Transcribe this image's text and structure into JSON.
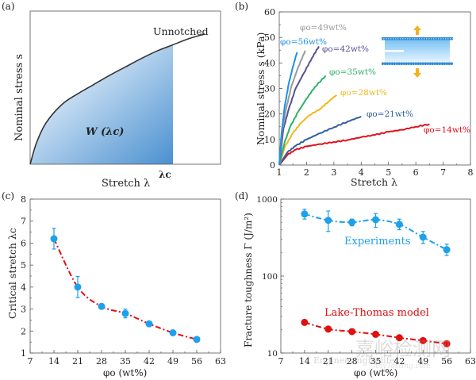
{
  "chart_data": [
    {
      "panel_label": "(a)",
      "type": "area",
      "title": "",
      "xlabel": "Stretch λ",
      "ylabel": "Nominal stress s",
      "curve_label": "Unnotched",
      "area_label": "W (λc)",
      "marker_label": "λc",
      "curve": {
        "x": [
          1,
          1.2,
          1.5,
          2,
          2.5,
          3,
          3.5,
          4,
          4.5,
          5,
          5.5,
          6,
          6.5
        ],
        "y": [
          0,
          0.14,
          0.27,
          0.39,
          0.46,
          0.52,
          0.58,
          0.635,
          0.69,
          0.74,
          0.78,
          0.82,
          0.85
        ]
      },
      "lambda_c": 5.5,
      "xlim": [
        1,
        7
      ],
      "ylim": [
        0,
        1
      ],
      "colors": {
        "curve": "#333333",
        "fill_light": "#e4eff9",
        "fill_dark": "#4a90d0"
      }
    },
    {
      "panel_label": "(b)",
      "type": "line",
      "xlabel": "Stretch λ",
      "ylabel": "Nominal stress s (kPa)",
      "xlim": [
        1,
        8
      ],
      "ylim": [
        0,
        60
      ],
      "xticks": [
        "1",
        "2",
        "3",
        "4",
        "5",
        "6",
        "7",
        "8"
      ],
      "yticks": [
        "0",
        "10",
        "20",
        "30",
        "40",
        "50",
        "60"
      ],
      "series": [
        {
          "name": "φo=14wt%",
          "color": "#e0101c",
          "x": [
            1,
            1.3,
            1.6,
            2,
            2.5,
            3,
            3.5,
            4,
            4.5,
            5,
            5.5,
            6,
            6.5
          ],
          "y": [
            0,
            4,
            6,
            7.3,
            8.2,
            9,
            9.8,
            10.9,
            11.8,
            13,
            13.8,
            15,
            16
          ]
        },
        {
          "name": "φo=21wt%",
          "color": "#2f5e9e",
          "x": [
            1,
            1.3,
            1.6,
            2,
            2.5,
            3,
            3.5,
            4
          ],
          "y": [
            0,
            5,
            7.5,
            10,
            12.5,
            14.8,
            17,
            19
          ]
        },
        {
          "name": "φo=28wt%",
          "color": "#f2b81e",
          "x": [
            1,
            1.2,
            1.5,
            1.8,
            2.1,
            2.5,
            2.8,
            3.1
          ],
          "y": [
            0,
            7,
            12.5,
            16.5,
            19.5,
            22,
            24.8,
            27.5
          ]
        },
        {
          "name": "φo=35wt%",
          "color": "#2bb266",
          "x": [
            1,
            1.2,
            1.4,
            1.7,
            2,
            2.3,
            2.7
          ],
          "y": [
            0,
            9,
            15,
            21,
            26,
            30.5,
            35
          ]
        },
        {
          "name": "φo=42wt%",
          "color": "#5a4f94",
          "x": [
            1,
            1.15,
            1.35,
            1.6,
            1.9,
            2.2,
            2.45
          ],
          "y": [
            0,
            14,
            22,
            30,
            36,
            42,
            46.5
          ]
        },
        {
          "name": "φo=49wt%",
          "color": "#9a9a9a",
          "x": [
            1,
            1.1,
            1.25,
            1.45,
            1.7,
            1.95
          ],
          "y": [
            0,
            13,
            22,
            31,
            38.5,
            44.8
          ]
        },
        {
          "name": "φo=56wt%",
          "color": "#1e90e6",
          "x": [
            1,
            1.08,
            1.2,
            1.35,
            1.5,
            1.65
          ],
          "y": [
            0,
            12,
            23,
            32,
            38.5,
            44.2
          ]
        }
      ],
      "inset": "notched sample schematic with vertical loading arrows",
      "colors": {
        "arrow": "#f5b21a",
        "clamp": "#1f7fd0",
        "sample_light": "#e6f4ff",
        "sample_dark": "#7cc3f4"
      }
    },
    {
      "panel_label": "(c)",
      "type": "scatter",
      "xlabel": "φo (wt%)",
      "ylabel": "Critical stretch λc",
      "xlim": [
        7,
        63
      ],
      "ylim": [
        1,
        8
      ],
      "xticks": [
        "7",
        "14",
        "21",
        "28",
        "35",
        "42",
        "49",
        "56",
        "63"
      ],
      "yticks": [
        "1",
        "2",
        "3",
        "4",
        "5",
        "6",
        "7",
        "8"
      ],
      "x": [
        14,
        21,
        28,
        35,
        42,
        49,
        56
      ],
      "y": [
        6.2,
        4.0,
        3.12,
        2.8,
        2.33,
        1.92,
        1.62
      ],
      "yerr": [
        0.47,
        0.48,
        0.12,
        0.2,
        0.06,
        0.05,
        0.05
      ],
      "colors": {
        "marker": "#1ea0ea",
        "fit": "#e01010"
      }
    },
    {
      "panel_label": "(d)",
      "type": "scatter",
      "yscale": "log",
      "xlabel": "φo (wt%)",
      "ylabel": "Fracture toughness Γ (J/m²)",
      "xlim": [
        7,
        63
      ],
      "ylim": [
        10,
        1000
      ],
      "xticks": [
        "7",
        "14",
        "21",
        "28",
        "35",
        "42",
        "49",
        "56",
        "63"
      ],
      "yticks": [
        "10",
        "100",
        "1000"
      ],
      "series": [
        {
          "name": "Experiments",
          "color": "#1ea0ea",
          "x": [
            14,
            21,
            28,
            35,
            42,
            49,
            56
          ],
          "y": [
            640,
            530,
            500,
            540,
            470,
            320,
            220
          ],
          "yerr_low": [
            90,
            150,
            50,
            110,
            70,
            55,
            35
          ],
          "yerr_high": [
            100,
            170,
            50,
            110,
            80,
            60,
            40
          ]
        },
        {
          "name": "Lake-Thomas model",
          "color": "#e01010",
          "x": [
            14,
            21,
            28,
            35,
            42,
            49,
            56
          ],
          "y": [
            25,
            20.5,
            19,
            17.5,
            15.8,
            14.5,
            13.2
          ]
        }
      ]
    }
  ],
  "watermark": {
    "text_cn": "嘉峪检测网",
    "text_en": "Engineeringforlife",
    "text_en2": "AnyTesting.com"
  }
}
